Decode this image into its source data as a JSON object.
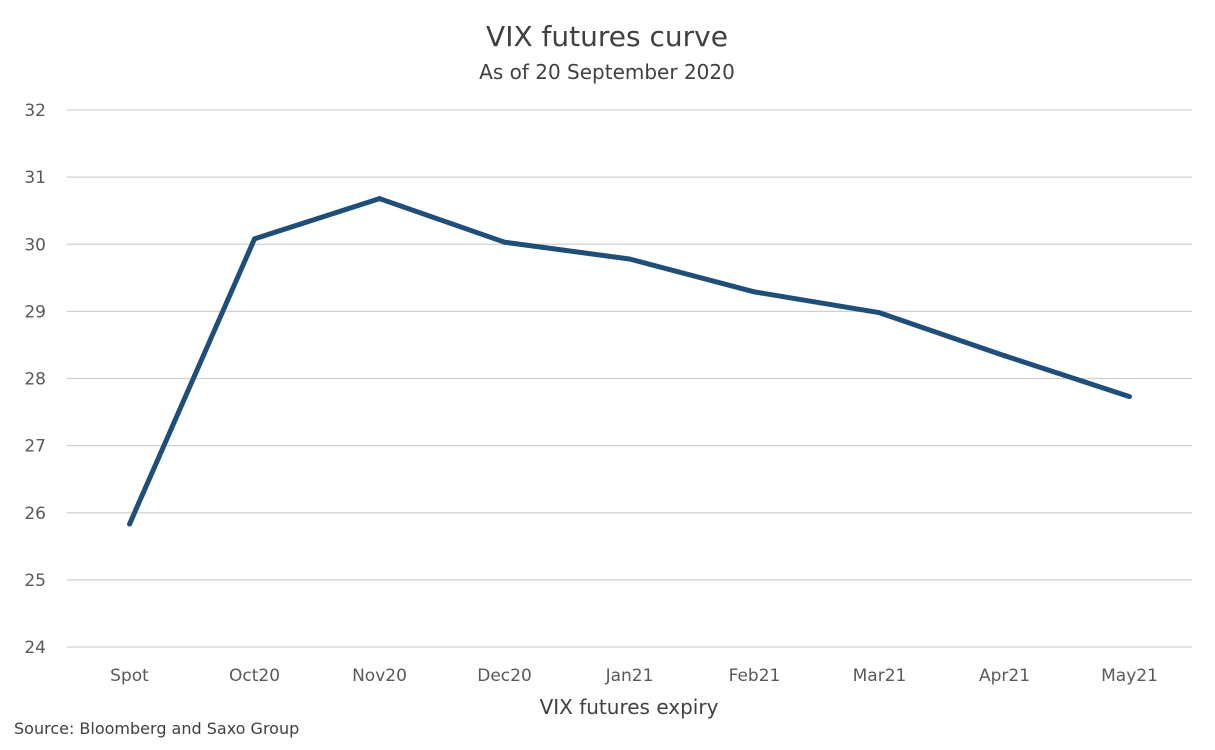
{
  "chart_data": {
    "type": "line",
    "title": "VIX futures curve",
    "subtitle": "As of 20 September 2020",
    "xlabel": "VIX futures expiry",
    "ylabel": "",
    "categories": [
      "Spot",
      "Oct20",
      "Nov20",
      "Dec20",
      "Jan21",
      "Feb21",
      "Mar21",
      "Apr21",
      "May21"
    ],
    "series": [
      {
        "values": [
          25.83,
          30.08,
          30.68,
          30.03,
          29.78,
          29.29,
          28.98,
          28.34,
          27.73
        ]
      }
    ],
    "ylim": [
      24,
      32
    ],
    "yticks": [
      24,
      25,
      26,
      27,
      28,
      29,
      30,
      31,
      32
    ],
    "grid": true,
    "legend": "none",
    "colors": {
      "line": "#1f4e79",
      "grid": "#d0d0d0",
      "text": "#404040"
    }
  },
  "source": "Source: Bloomberg and Saxo Group"
}
